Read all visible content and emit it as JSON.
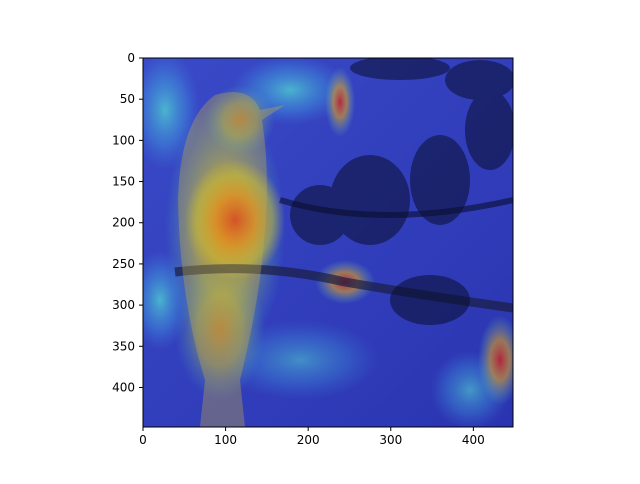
{
  "figure": {
    "image_description_icon": "bird-on-branch-heatmap-overlay",
    "colormap": "jet",
    "xlim": [
      0,
      448
    ],
    "ylim": [
      448,
      0
    ],
    "x_ticks": [
      "0",
      "100",
      "200",
      "300",
      "400"
    ],
    "y_ticks": [
      "0",
      "50",
      "100",
      "150",
      "200",
      "250",
      "300",
      "350",
      "400"
    ]
  },
  "colors": {
    "axes_frame": "#000000",
    "heat_low": "#2030c0",
    "heat_high": "#ff2000"
  }
}
